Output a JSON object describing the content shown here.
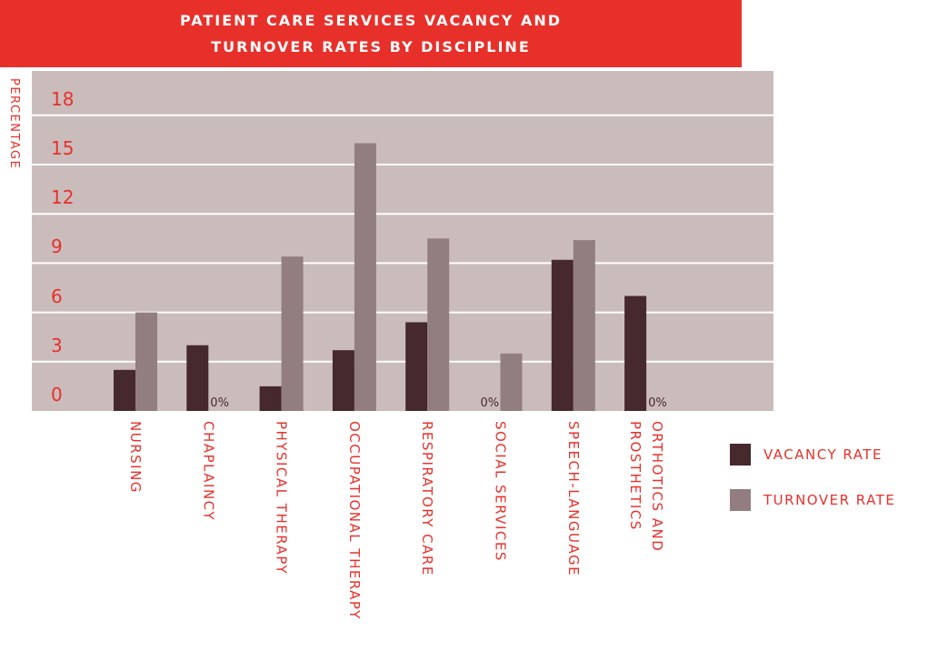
{
  "chart_data": {
    "type": "bar",
    "title": "PATIENT CARE SERVICES VACANCY AND TURNOVER RATES BY DISCIPLINE",
    "y_label": "PERCENTAGE",
    "categories": [
      "NURSING",
      "CHAPLAINCY",
      "PHYSICAL THERAPY",
      "OCCUPATIONAL THERAPY",
      "RESPIRATORY CARE",
      "SOCIAL SERVICES",
      "SPEECH-LANGUAGE",
      "ORTHOTICS AND PROSTHETICS"
    ],
    "series": [
      {
        "name": "VACANCY RATE",
        "color": "#46292c",
        "values": [
          2.5,
          4,
          1.5,
          3.7,
          5.4,
          0,
          9.2,
          7
        ],
        "value_labels": [
          null,
          null,
          null,
          null,
          null,
          "0%",
          null,
          null
        ]
      },
      {
        "name": "TURNOVER RATE",
        "color": "#937e7f",
        "values": [
          6,
          0,
          9.4,
          16.3,
          10.5,
          3.5,
          10.4,
          0
        ],
        "value_labels": [
          null,
          "0%",
          null,
          null,
          null,
          null,
          null,
          "0%"
        ]
      }
    ],
    "ylim": [
      0,
      20.7
    ],
    "yticks": [
      0,
      3,
      6,
      9,
      12,
      15,
      18
    ],
    "grid": true
  }
}
